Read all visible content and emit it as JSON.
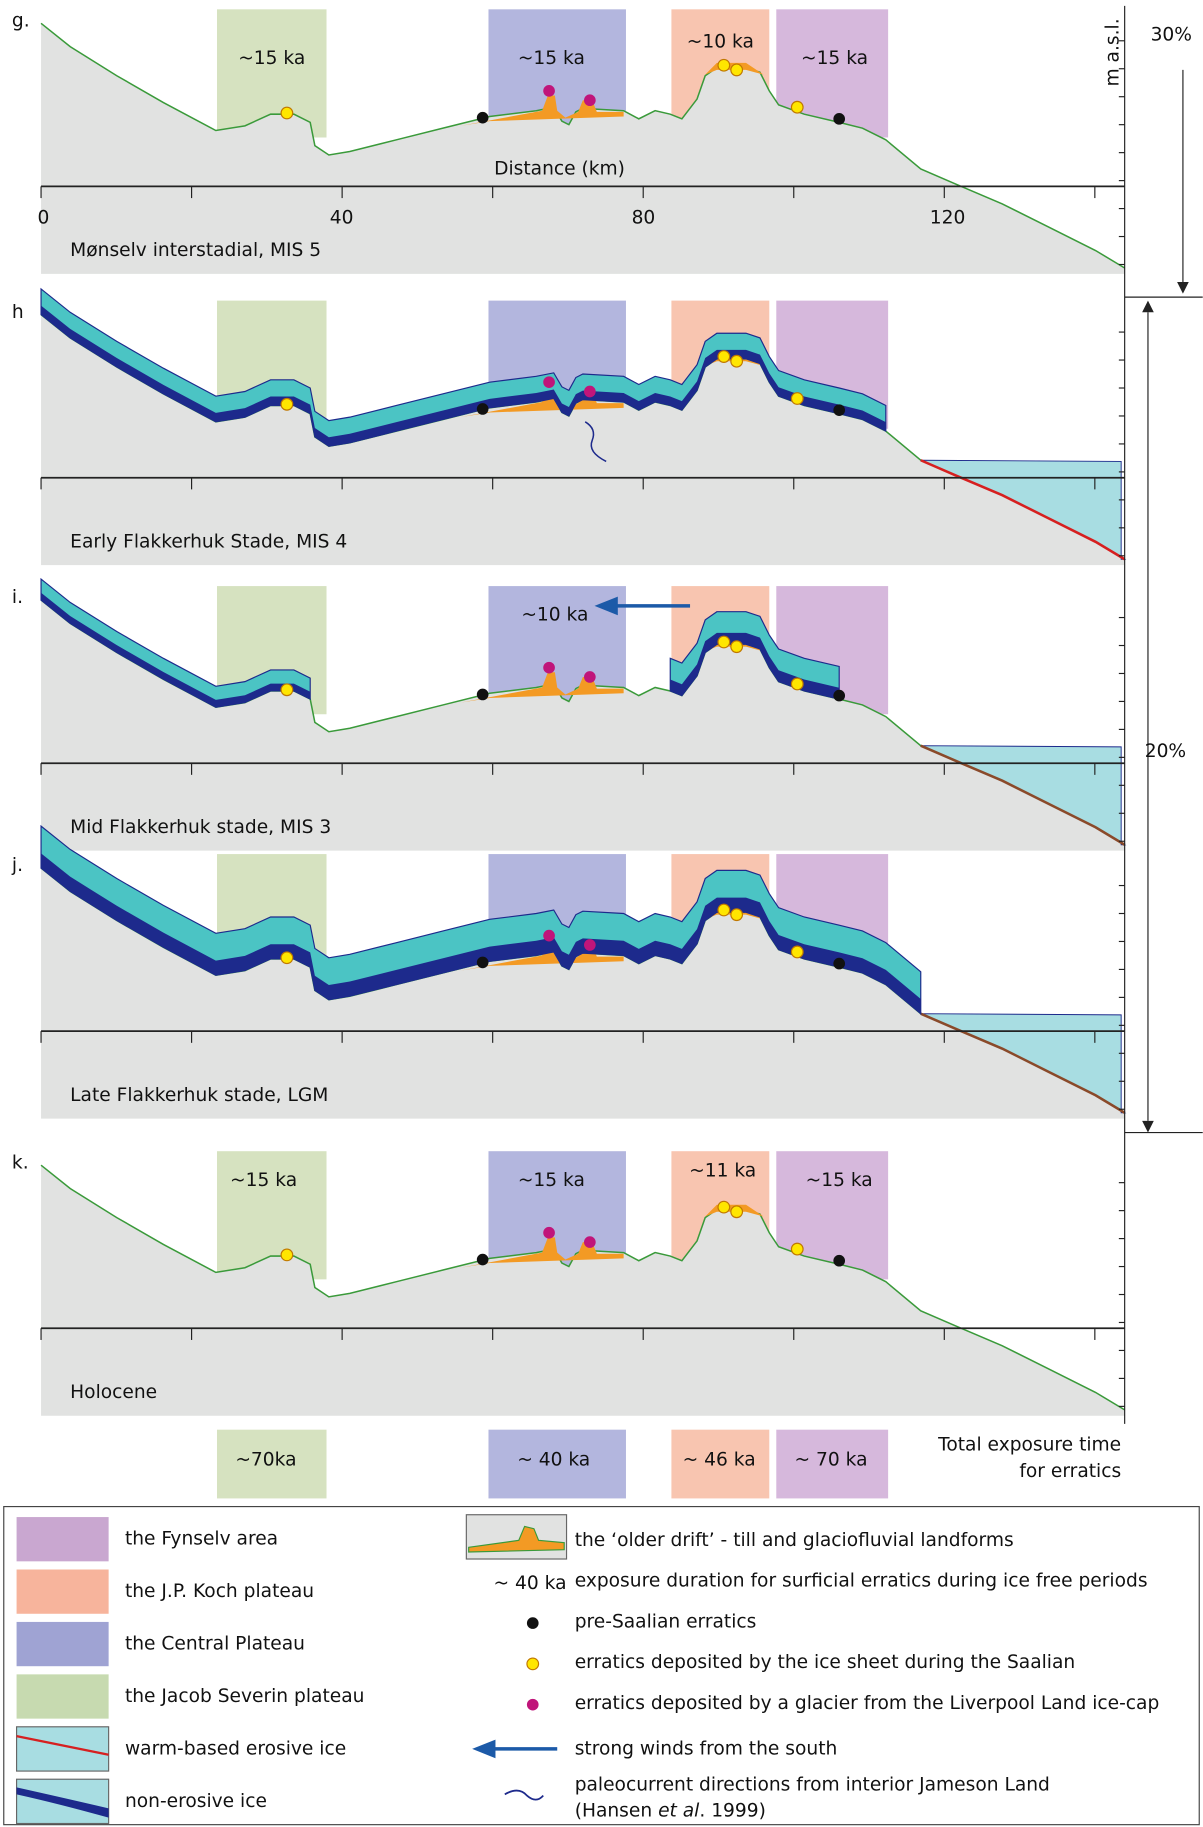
{
  "panels": [
    {
      "letter": "g.",
      "caption": "Mønselv interstadial, MIS 5",
      "exposure": [
        "~15 ka",
        "~15 ka",
        "~10 ka",
        "~15 ka"
      ]
    },
    {
      "letter": "h",
      "caption": "Early Flakkerhuk Stade, MIS 4"
    },
    {
      "letter": "i.",
      "caption": "Mid Flakkerhuk stade, MIS 3",
      "exposure": [
        "~10 ka"
      ]
    },
    {
      "letter": "j.",
      "caption": "Late Flakkerhuk stade, LGM"
    },
    {
      "letter": "k.",
      "caption": "Holocene",
      "exposure": [
        "~15 ka",
        "~15 ka",
        "~11 ka",
        "~15 ka"
      ]
    }
  ],
  "axis": {
    "title": "Distance (km)",
    "ticks": [
      "0",
      "40",
      "80",
      "120"
    ],
    "y_title": "m a.s.l."
  },
  "percentages": [
    "30%",
    "20%"
  ],
  "totals": {
    "labels": [
      "~70ka",
      "~ 40 ka",
      "~ 46 ka",
      "~ 70 ka"
    ],
    "title": [
      "Total exposure time",
      "for erratics"
    ]
  },
  "legend": {
    "areas": [
      "the Fynselv area",
      "the J.P. Koch plateau",
      "the Central Plateau",
      "the Jacob Severin plateau",
      "warm-based erosive ice",
      "non-erosive ice"
    ],
    "symbols": [
      {
        "label": "the ‘older drift’ - till and glaciofluvial landforms"
      },
      {
        "key": "~ 40 ka",
        "label": "exposure duration for surficial erratics during ice free periods"
      },
      {
        "label": "pre-Saalian erratics"
      },
      {
        "label": "erratics deposited  by the ice sheet during the Saalian"
      },
      {
        "label": "erratics deposited  by a glacier from the Liverpool Land ice-cap"
      },
      {
        "label": "strong winds from the south"
      },
      {
        "label": "paleocurrent directions from interior Jameson Land",
        "citation": [
          "(Hansen ",
          "et al",
          ". 1999)"
        ]
      }
    ]
  }
}
